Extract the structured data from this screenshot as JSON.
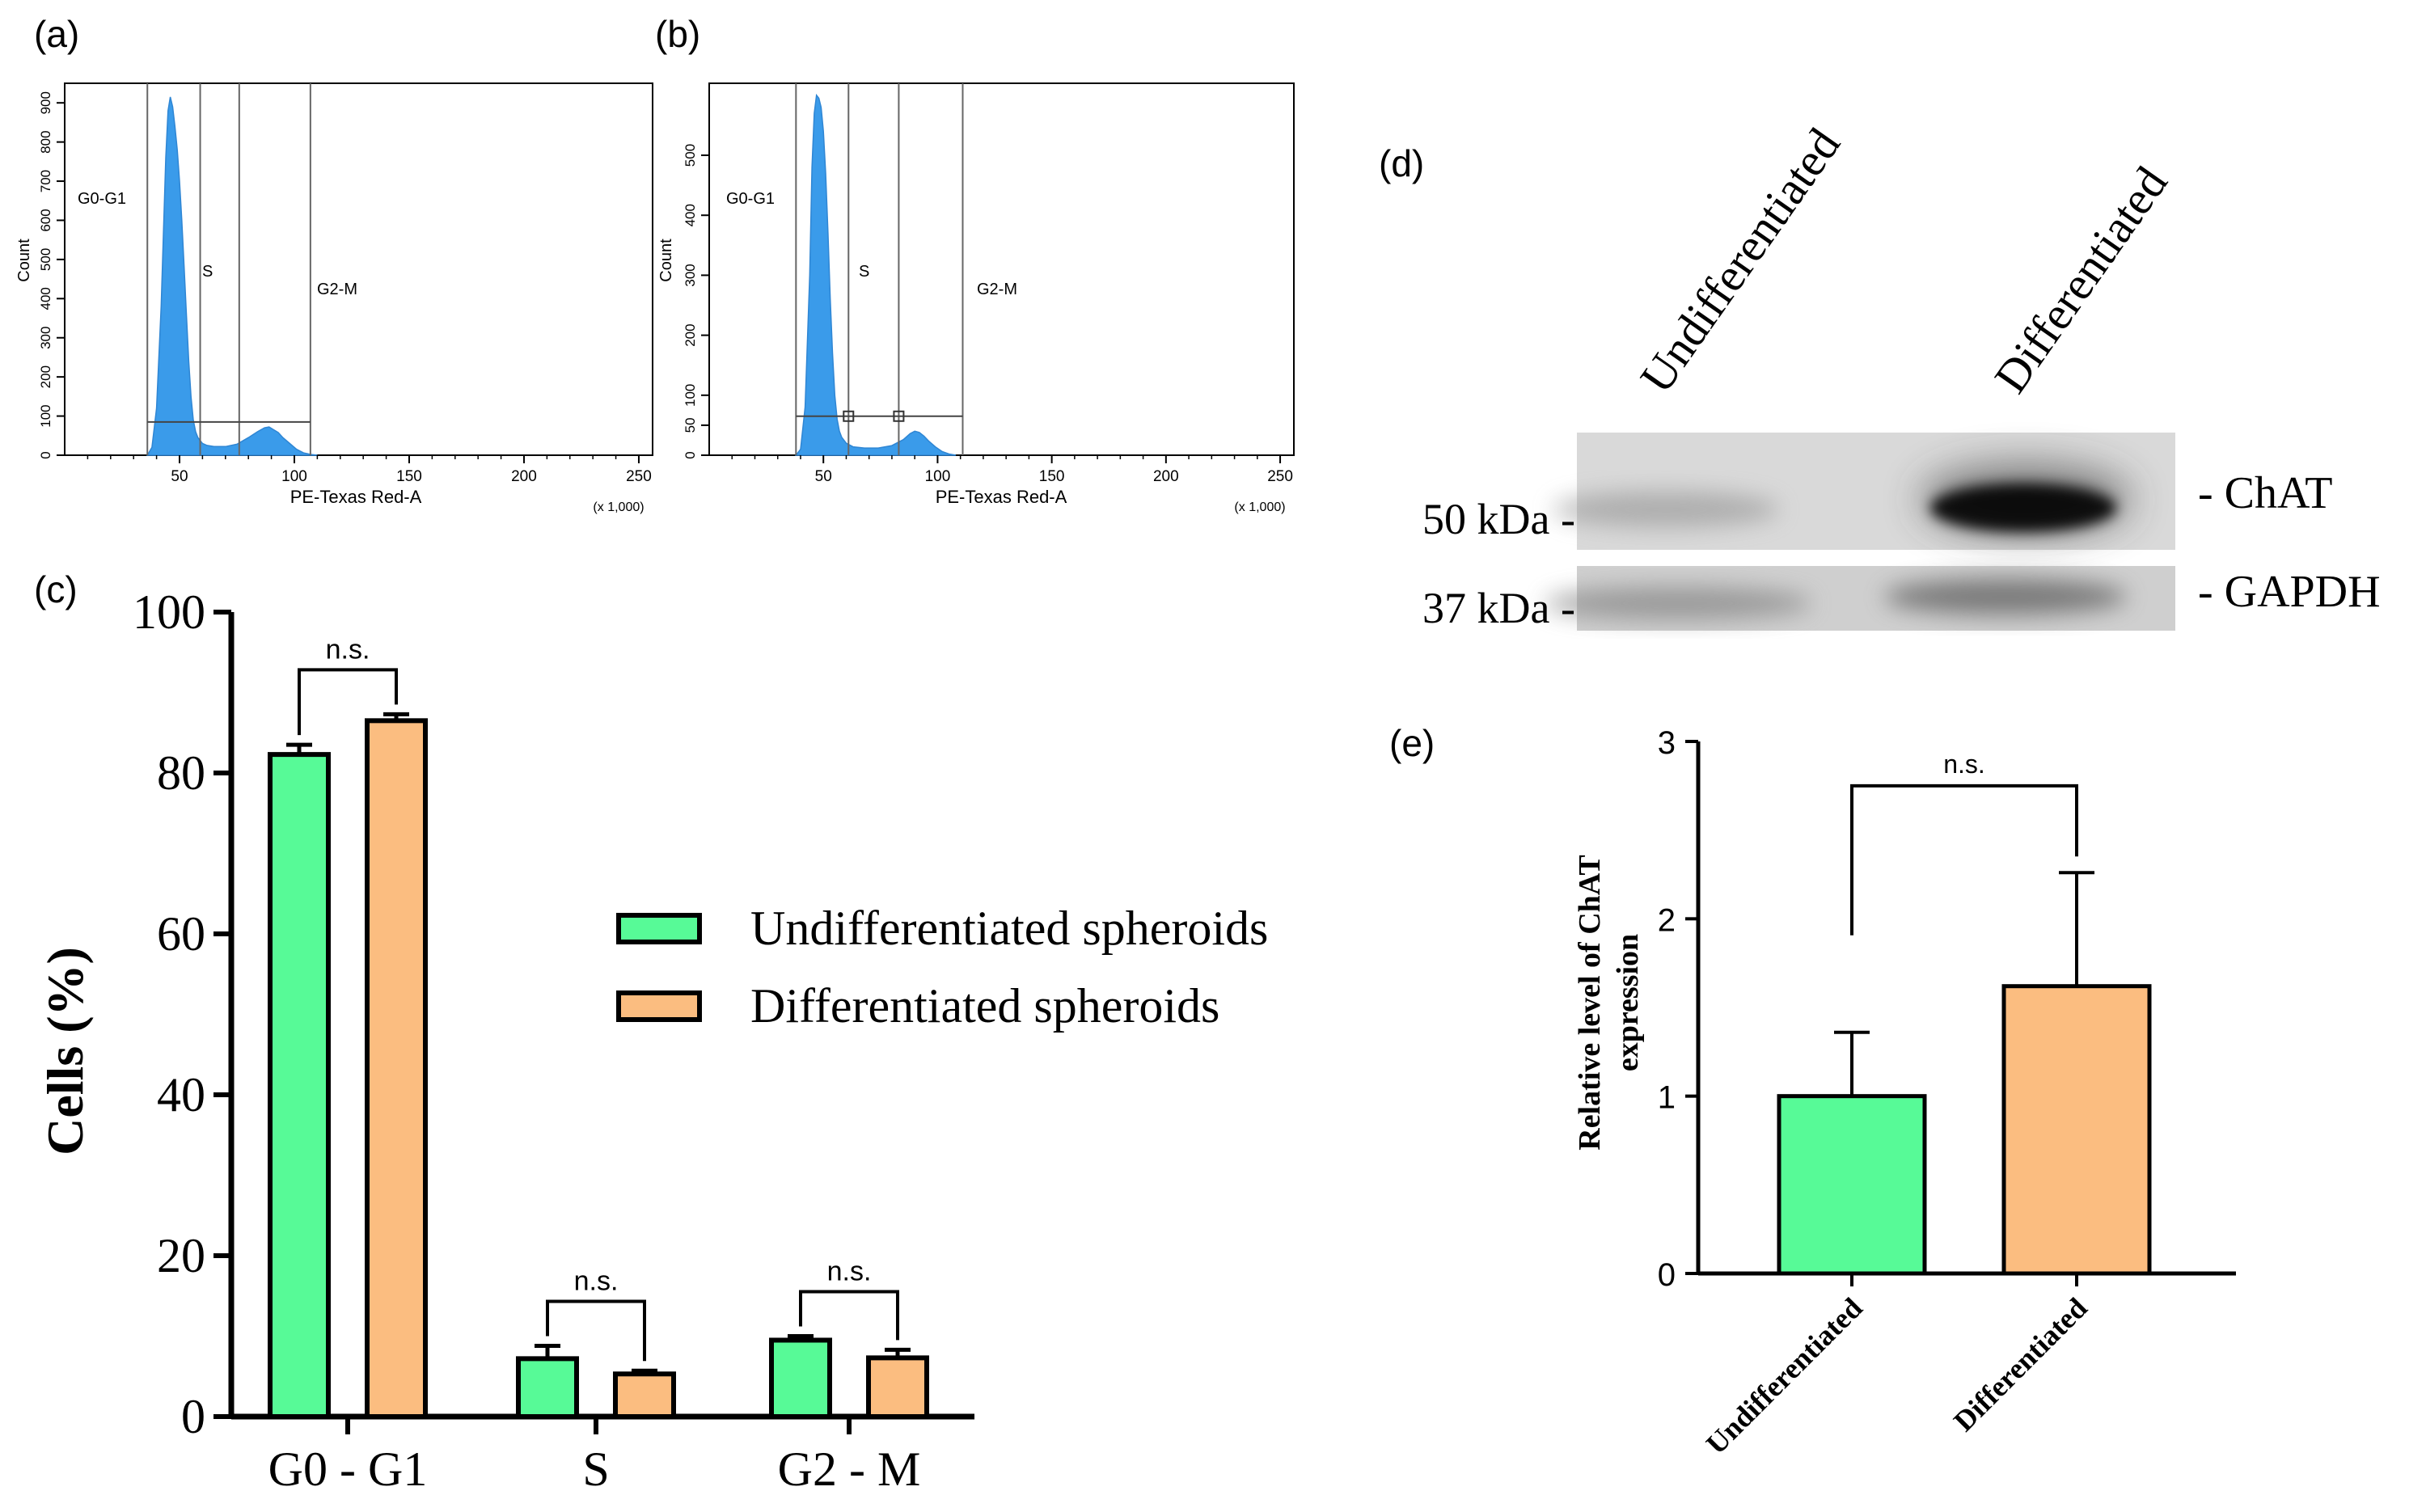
{
  "panel_labels": {
    "a": "(a)",
    "b": "(b)",
    "c": "(c)",
    "d": "(d)",
    "e": "(e)"
  },
  "colors": {
    "undifferentiated": "#57fa97",
    "differentiated": "#fbbd80",
    "histogram": "#3a9bea",
    "axis": "#000000"
  },
  "chart_data": [
    {
      "id": "a",
      "type": "area",
      "title": "",
      "xlabel": "PE-Texas Red-A",
      "x_multiplier": "(x 1,000)",
      "ylabel": "Count",
      "xlim": [
        0,
        256
      ],
      "ylim": [
        0,
        950
      ],
      "x_ticks": [
        50,
        100,
        150,
        200,
        250
      ],
      "y_ticks": [
        0,
        100,
        200,
        300,
        400,
        500,
        600,
        700,
        800,
        900
      ],
      "gate_labels": [
        "G0-G1",
        "S",
        "G2-M"
      ],
      "gates": [
        36,
        59,
        76,
        107
      ],
      "marker_line_y": 85,
      "histogram": {
        "x": [
          36,
          38,
          40,
          42,
          44,
          45,
          46,
          47,
          48,
          49,
          50,
          51,
          52,
          53,
          54,
          55,
          56,
          57,
          58,
          60,
          62,
          65,
          70,
          75,
          80,
          84,
          87,
          89,
          91,
          93,
          95,
          98,
          101,
          104,
          107,
          110
        ],
        "y": [
          0,
          20,
          120,
          380,
          760,
          880,
          915,
          890,
          840,
          780,
          700,
          600,
          480,
          360,
          240,
          150,
          90,
          60,
          45,
          30,
          25,
          22,
          22,
          28,
          45,
          60,
          70,
          72,
          65,
          58,
          45,
          30,
          15,
          6,
          2,
          0
        ]
      }
    },
    {
      "id": "b",
      "type": "area",
      "title": "",
      "xlabel": "PE-Texas Red-A",
      "x_multiplier": "(x 1,000)",
      "ylabel": "Count",
      "xlim": [
        0,
        256
      ],
      "ylim": [
        0,
        620
      ],
      "x_ticks": [
        50,
        100,
        150,
        200,
        250
      ],
      "y_ticks": [
        0,
        50,
        100,
        200,
        300,
        400,
        500
      ],
      "gate_labels": [
        "G0-G1",
        "S",
        "G2-M"
      ],
      "gates": [
        38,
        61,
        83,
        111
      ],
      "marker_line_y": 65,
      "histogram": {
        "x": [
          38,
          40,
          42,
          44,
          45,
          46,
          47,
          48,
          49,
          50,
          51,
          52,
          53,
          54,
          55,
          56,
          57,
          58,
          60,
          63,
          68,
          74,
          80,
          85,
          88,
          90,
          92,
          94,
          96,
          99,
          102,
          105,
          108
        ],
        "y": [
          0,
          10,
          80,
          300,
          480,
          570,
          600,
          595,
          580,
          540,
          470,
          370,
          260,
          170,
          100,
          60,
          40,
          30,
          20,
          14,
          12,
          12,
          16,
          26,
          36,
          40,
          38,
          32,
          24,
          14,
          6,
          2,
          0
        ]
      }
    },
    {
      "id": "c",
      "type": "bar",
      "title": "",
      "xlabel": "",
      "ylabel": "Cells  (%)",
      "ylim": [
        0,
        100
      ],
      "y_ticks": [
        0,
        20,
        40,
        60,
        80,
        100
      ],
      "categories": [
        "G0 - G1",
        "S",
        "G2 - M"
      ],
      "series": [
        {
          "name": "Undifferentiated spheroids",
          "values": [
            82.3,
            7.2,
            9.5
          ],
          "errors": [
            1.2,
            1.6,
            0.5
          ]
        },
        {
          "name": "Differentiated spheroids",
          "values": [
            86.5,
            5.3,
            7.3
          ],
          "errors": [
            0.8,
            0.4,
            1.0
          ]
        }
      ],
      "significance": [
        "n.s.",
        "n.s.",
        "n.s."
      ],
      "legend_position": "center-right"
    },
    {
      "id": "e",
      "type": "bar",
      "title": "",
      "xlabel": "",
      "ylabel_line1": "Relative level of ChAT",
      "ylabel_line2": "expression",
      "ylim": [
        0,
        3
      ],
      "y_ticks": [
        0,
        1,
        2,
        3
      ],
      "categories": [
        "Undifferentiated",
        "Differentiated"
      ],
      "values": [
        1.0,
        1.62
      ],
      "errors": [
        0.36,
        0.64
      ],
      "significance": "n.s."
    }
  ],
  "western_blot": {
    "lane_labels": [
      "Undifferentiated",
      "Differentiated"
    ],
    "rows": [
      {
        "marker": "50 kDa -",
        "protein": "- ChAT"
      },
      {
        "marker": "37 kDa -",
        "protein": "- GAPDH"
      }
    ]
  }
}
